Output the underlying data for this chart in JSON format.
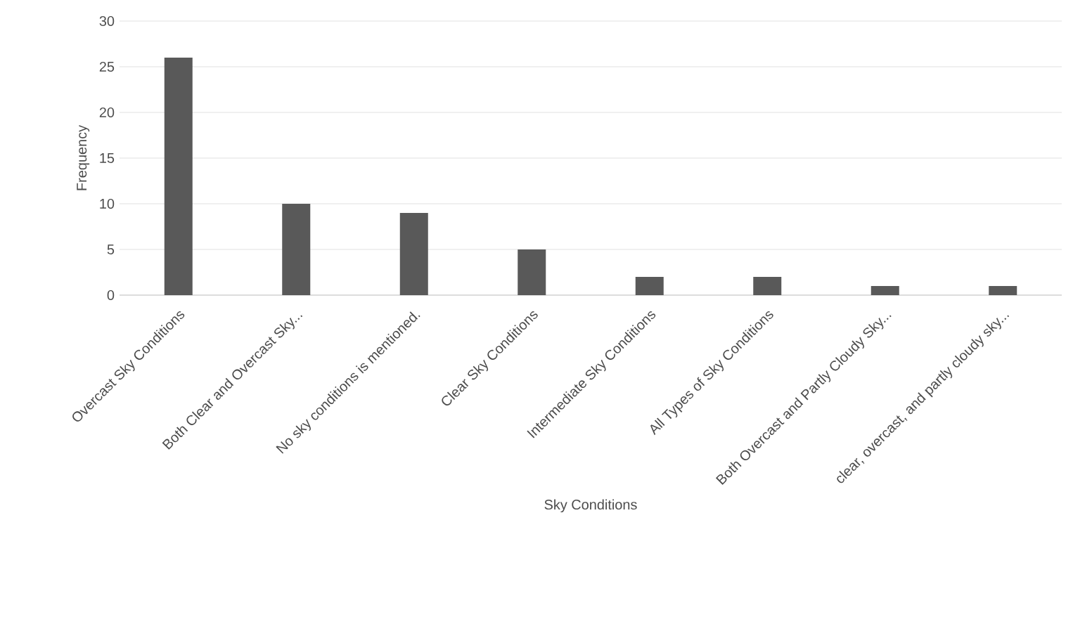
{
  "chart_data": {
    "type": "bar",
    "xlabel": "Sky Conditions",
    "ylabel": "Frequency",
    "categories": [
      "Overcast Sky Conditions",
      "Both Clear and Overcast Sky...",
      "No sky conditions is mentioned.",
      "Clear Sky Conditions",
      "Intermediate Sky Conditions",
      "All Types of Sky Conditions",
      "Both Overcast and Partly Cloudy Sky...",
      "clear, overcast, and partly cloudy sky..."
    ],
    "values": [
      26,
      10,
      9,
      5,
      2,
      2,
      1,
      1
    ],
    "color": "#595959",
    "ylim": [
      0,
      30
    ],
    "yticks": [
      0,
      5,
      10,
      15,
      20,
      25,
      30
    ],
    "grid": "y"
  }
}
